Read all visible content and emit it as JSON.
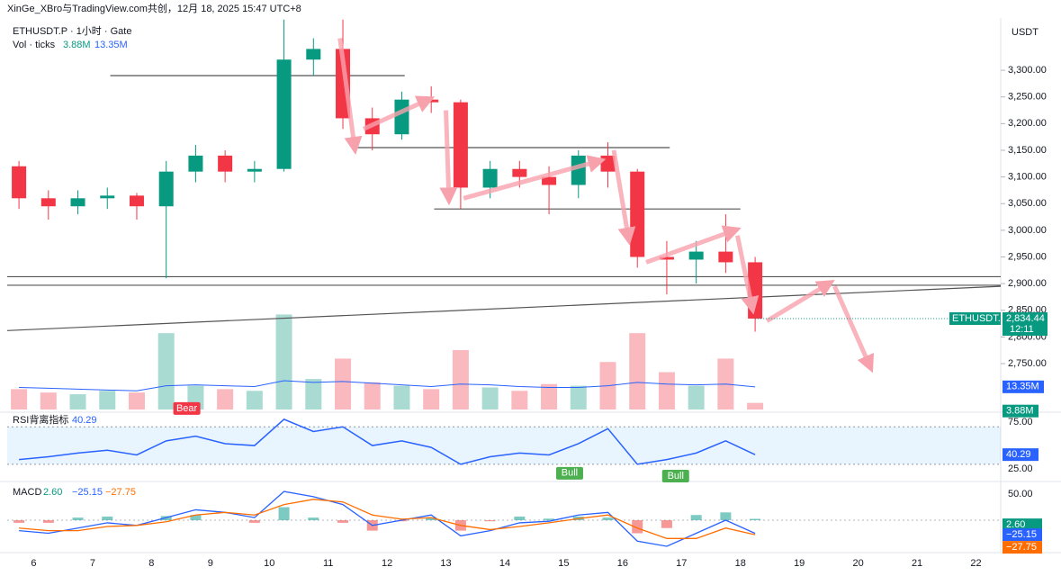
{
  "chart_data": {
    "type": "candlestick",
    "source": "XinGe_XBro与TradingView.com共创，12月 18, 2025 15:47 UTC+8",
    "symbol": "ETHUSDT.P · 1小时 · Gate",
    "currency": "USDT",
    "colors": {
      "up": "#089981",
      "down": "#f23645"
    },
    "xlim": [
      5.55,
      22.42
    ],
    "xticks": [
      6,
      7,
      8,
      9,
      10,
      11,
      12,
      13,
      14,
      15,
      16,
      17,
      18,
      19,
      20,
      21,
      22
    ],
    "ylim": [
      2664,
      3398
    ],
    "yticks": [
      {
        "value": 2750,
        "label": "2,750.00"
      },
      {
        "value": 2800,
        "label": "2,800.00"
      },
      {
        "value": 2850,
        "label": "2,850.00"
      },
      {
        "value": 2900,
        "label": "2,900.00"
      },
      {
        "value": 2950,
        "label": "2,950.00"
      },
      {
        "value": 3000,
        "label": "3,000.00"
      },
      {
        "value": 3050,
        "label": "3,050.00"
      },
      {
        "value": 3100,
        "label": "3,100.00"
      },
      {
        "value": 3150,
        "label": "3,150.00"
      },
      {
        "value": 3200,
        "label": "3,200.00"
      },
      {
        "value": 3250,
        "label": "3,250.00"
      },
      {
        "value": 3300,
        "label": "3,300.00"
      }
    ],
    "x": [
      5.75,
      6.25,
      6.75,
      7.25,
      7.75,
      8.25,
      8.75,
      9.25,
      9.75,
      10.25,
      10.75,
      11.25,
      11.75,
      12.25,
      12.75,
      13.25,
      13.75,
      14.25,
      14.75,
      15.25,
      15.75,
      16.25,
      16.75,
      17.25,
      17.75,
      18.25
    ],
    "open": [
      3120,
      3060,
      3045,
      3060,
      3065,
      3045,
      3110,
      3140,
      3110,
      3115,
      3320,
      3340,
      3210,
      3180,
      3245,
      3240,
      3080,
      3115,
      3100,
      3085,
      3140,
      3110,
      2950,
      2945,
      2960,
      2940
    ],
    "high": [
      3130,
      3075,
      3075,
      3080,
      3070,
      3130,
      3160,
      3150,
      3130,
      3395,
      3360,
      3395,
      3230,
      3260,
      3270,
      3245,
      3130,
      3130,
      3120,
      3150,
      3165,
      3115,
      2980,
      2980,
      3030,
      2950
    ],
    "low": [
      3040,
      3020,
      3030,
      3040,
      3020,
      2910,
      3090,
      3090,
      3090,
      3110,
      3290,
      3190,
      3150,
      3170,
      3220,
      3040,
      3060,
      3080,
      3030,
      3060,
      3080,
      2930,
      2880,
      2900,
      2920,
      2810
    ],
    "close": [
      3060,
      3045,
      3060,
      3065,
      3045,
      3110,
      3140,
      3110,
      3115,
      3320,
      3340,
      3210,
      3180,
      3245,
      3240,
      3080,
      3115,
      3100,
      3085,
      3140,
      3110,
      2950,
      2945,
      2960,
      2940,
      2834.44
    ],
    "last_price_label": "2,834.44",
    "countdown": "12:11",
    "symbol_tag": "ETHUSDT.P",
    "levels": [
      {
        "x": [
          7.3,
          12.3
        ],
        "y": [
          3290,
          3290
        ]
      },
      {
        "x": [
          11.5,
          16.8
        ],
        "y": [
          3155,
          3155
        ]
      },
      {
        "x": [
          12.8,
          18.0
        ],
        "y": [
          3040,
          3040
        ]
      },
      {
        "x": [
          5.55,
          22.42
        ],
        "y": [
          2913,
          2913
        ]
      },
      {
        "x": [
          5.55,
          22.42
        ],
        "y": [
          2897,
          2897
        ]
      },
      {
        "x": [
          5.55,
          22.42
        ],
        "y": [
          2812,
          2895
        ]
      }
    ],
    "arrows": [
      {
        "x": [
          11.2,
          11.45
        ],
        "y": [
          3360,
          3155
        ]
      },
      {
        "x": [
          11.6,
          12.7
        ],
        "y": [
          3190,
          3245
        ]
      },
      {
        "x": [
          13.0,
          13.05
        ],
        "y": [
          3225,
          3060
        ]
      },
      {
        "x": [
          13.3,
          15.6
        ],
        "y": [
          3060,
          3130
        ]
      },
      {
        "x": [
          15.85,
          16.1
        ],
        "y": [
          3150,
          2985
        ]
      },
      {
        "x": [
          16.4,
          17.9
        ],
        "y": [
          2940,
          3000
        ]
      },
      {
        "x": [
          17.95,
          18.2
        ],
        "y": [
          2990,
          2855
        ]
      },
      {
        "x": [
          18.45,
          19.5
        ],
        "y": [
          2830,
          2900
        ]
      },
      {
        "x": [
          19.6,
          20.2
        ],
        "y": [
          2895,
          2745
        ]
      }
    ],
    "volume": {
      "label": "Vol · ticks",
      "ylim": [
        0,
        61
      ],
      "values": [
        12,
        10,
        9,
        11,
        10,
        45,
        14,
        12,
        11,
        56,
        18,
        30,
        16,
        14,
        12,
        35,
        13,
        11,
        15,
        14,
        28,
        45,
        22,
        14,
        30,
        3.88
      ],
      "last_label": "3.88M",
      "ma_values": [
        13,
        12.5,
        12,
        11.5,
        11,
        14,
        14.5,
        14,
        13.5,
        17,
        16,
        16.5,
        15.5,
        14.5,
        13.5,
        15,
        14.5,
        13.5,
        13,
        13,
        14,
        16,
        15,
        14.5,
        15,
        13.35
      ],
      "ma_last_label": "13.35M",
      "ma_color": "#2962ff"
    },
    "rsi": {
      "label": "RSI背离指标",
      "ylim": [
        13.5,
        83.7
      ],
      "yticks": [
        {
          "value": 75,
          "label": "75.00"
        },
        {
          "value": 25,
          "label": "25.00"
        }
      ],
      "bands": [
        70,
        30
      ],
      "color": "#2962ff",
      "values": [
        35,
        38,
        42,
        45,
        40,
        55,
        60,
        52,
        50,
        78,
        65,
        70,
        50,
        55,
        48,
        30,
        38,
        42,
        40,
        52,
        68,
        30,
        35,
        42,
        55,
        40.29
      ],
      "signals": [
        {
          "x": 8.6,
          "value": 78,
          "label": "Bear"
        },
        {
          "x": 15.1,
          "value": 30,
          "label": "Bull"
        },
        {
          "x": 16.9,
          "value": 27,
          "label": "Bull"
        }
      ]
    },
    "macd": {
      "label": "MACD",
      "ylim": [
        -58.6,
        69
      ],
      "yticks": [
        {
          "value": 50,
          "label": "50.00"
        }
      ],
      "histogram": {
        "values": [
          -5,
          -5,
          5,
          7,
          0,
          8,
          10,
          0,
          -5,
          25,
          5,
          -5,
          -20,
          -2,
          5,
          -20,
          -2,
          7,
          3,
          7,
          5,
          -25,
          -15,
          10,
          15,
          2.6
        ],
        "last_label": "2.60"
      },
      "macd_line": {
        "color": "#2962ff",
        "values": [
          -20,
          -25,
          -15,
          -5,
          -10,
          5,
          20,
          15,
          5,
          55,
          45,
          30,
          -10,
          0,
          10,
          -30,
          -20,
          -5,
          -2,
          10,
          15,
          -40,
          -50,
          -25,
          0,
          -25.15
        ],
        "last_label": "−25.15"
      },
      "signal_line": {
        "color": "#ff6d00",
        "values": [
          -15,
          -20,
          -20,
          -12,
          -10,
          -3,
          10,
          15,
          10,
          30,
          40,
          35,
          10,
          2,
          5,
          -10,
          -18,
          -12,
          -5,
          3,
          10,
          -15,
          -35,
          -35,
          -15,
          -27.75
        ],
        "last_label": "−27.75"
      }
    }
  }
}
